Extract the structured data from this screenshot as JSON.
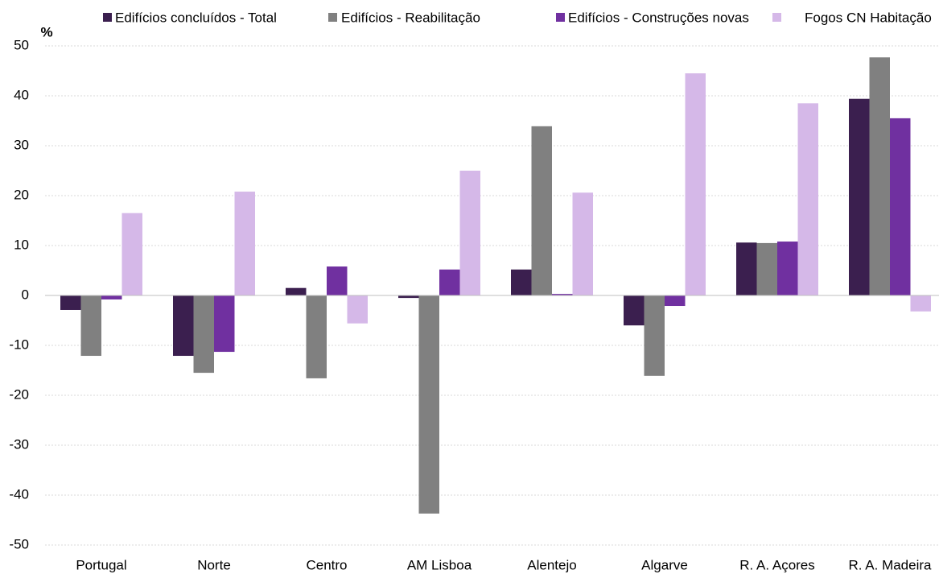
{
  "chart_data": {
    "type": "bar",
    "y_label": "%",
    "categories": [
      "Portugal",
      "Norte",
      "Centro",
      "AM Lisboa",
      "Alentejo",
      "Algarve",
      "R. A. Açores",
      "R. A. Madeira"
    ],
    "series": [
      {
        "name": "Edifícios concluídos - Total",
        "color": "#3b1f4f",
        "values": [
          -2.9,
          -12.1,
          1.5,
          -0.5,
          5.2,
          -6.0,
          10.6,
          39.4
        ]
      },
      {
        "name": "Edifícios - Reabilitação",
        "color": "#808080",
        "values": [
          -12.1,
          -15.5,
          -16.6,
          -43.7,
          33.9,
          -16.1,
          10.5,
          47.7
        ]
      },
      {
        "name": "Edifícios - Construções novas",
        "color": "#7030a0",
        "values": [
          -0.8,
          -11.3,
          5.8,
          5.2,
          0.3,
          -2.1,
          10.8,
          35.5
        ]
      },
      {
        "name": "Fogos CN Habitação",
        "color": "#d5b8e8",
        "values": [
          16.5,
          20.8,
          -5.6,
          25.0,
          20.6,
          44.5,
          38.5,
          -3.2
        ]
      }
    ],
    "ylim": [
      -50,
      50
    ],
    "yticks": [
      -50,
      -40,
      -30,
      -20,
      -10,
      0,
      10,
      20,
      30,
      40,
      50
    ],
    "grid": true,
    "legend": "top"
  }
}
